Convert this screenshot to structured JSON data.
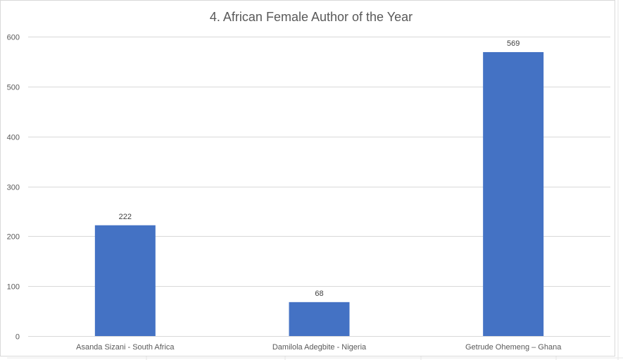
{
  "chart_data": {
    "type": "bar",
    "title": "4. African Female Author of the Year",
    "categories": [
      "Asanda Sizani - South Africa",
      "Damilola Adegbite - Nigeria",
      "Getrude Ohemeng – Ghana"
    ],
    "values": [
      222,
      68,
      569
    ],
    "data_labels": [
      "222",
      "68",
      "569"
    ],
    "ylim": [
      0,
      600
    ],
    "yticks": [
      0,
      100,
      200,
      300,
      400,
      500,
      600
    ],
    "grid": true,
    "legend": "none",
    "bar_color": "#4472c4",
    "grid_color": "#d9d9d9"
  }
}
